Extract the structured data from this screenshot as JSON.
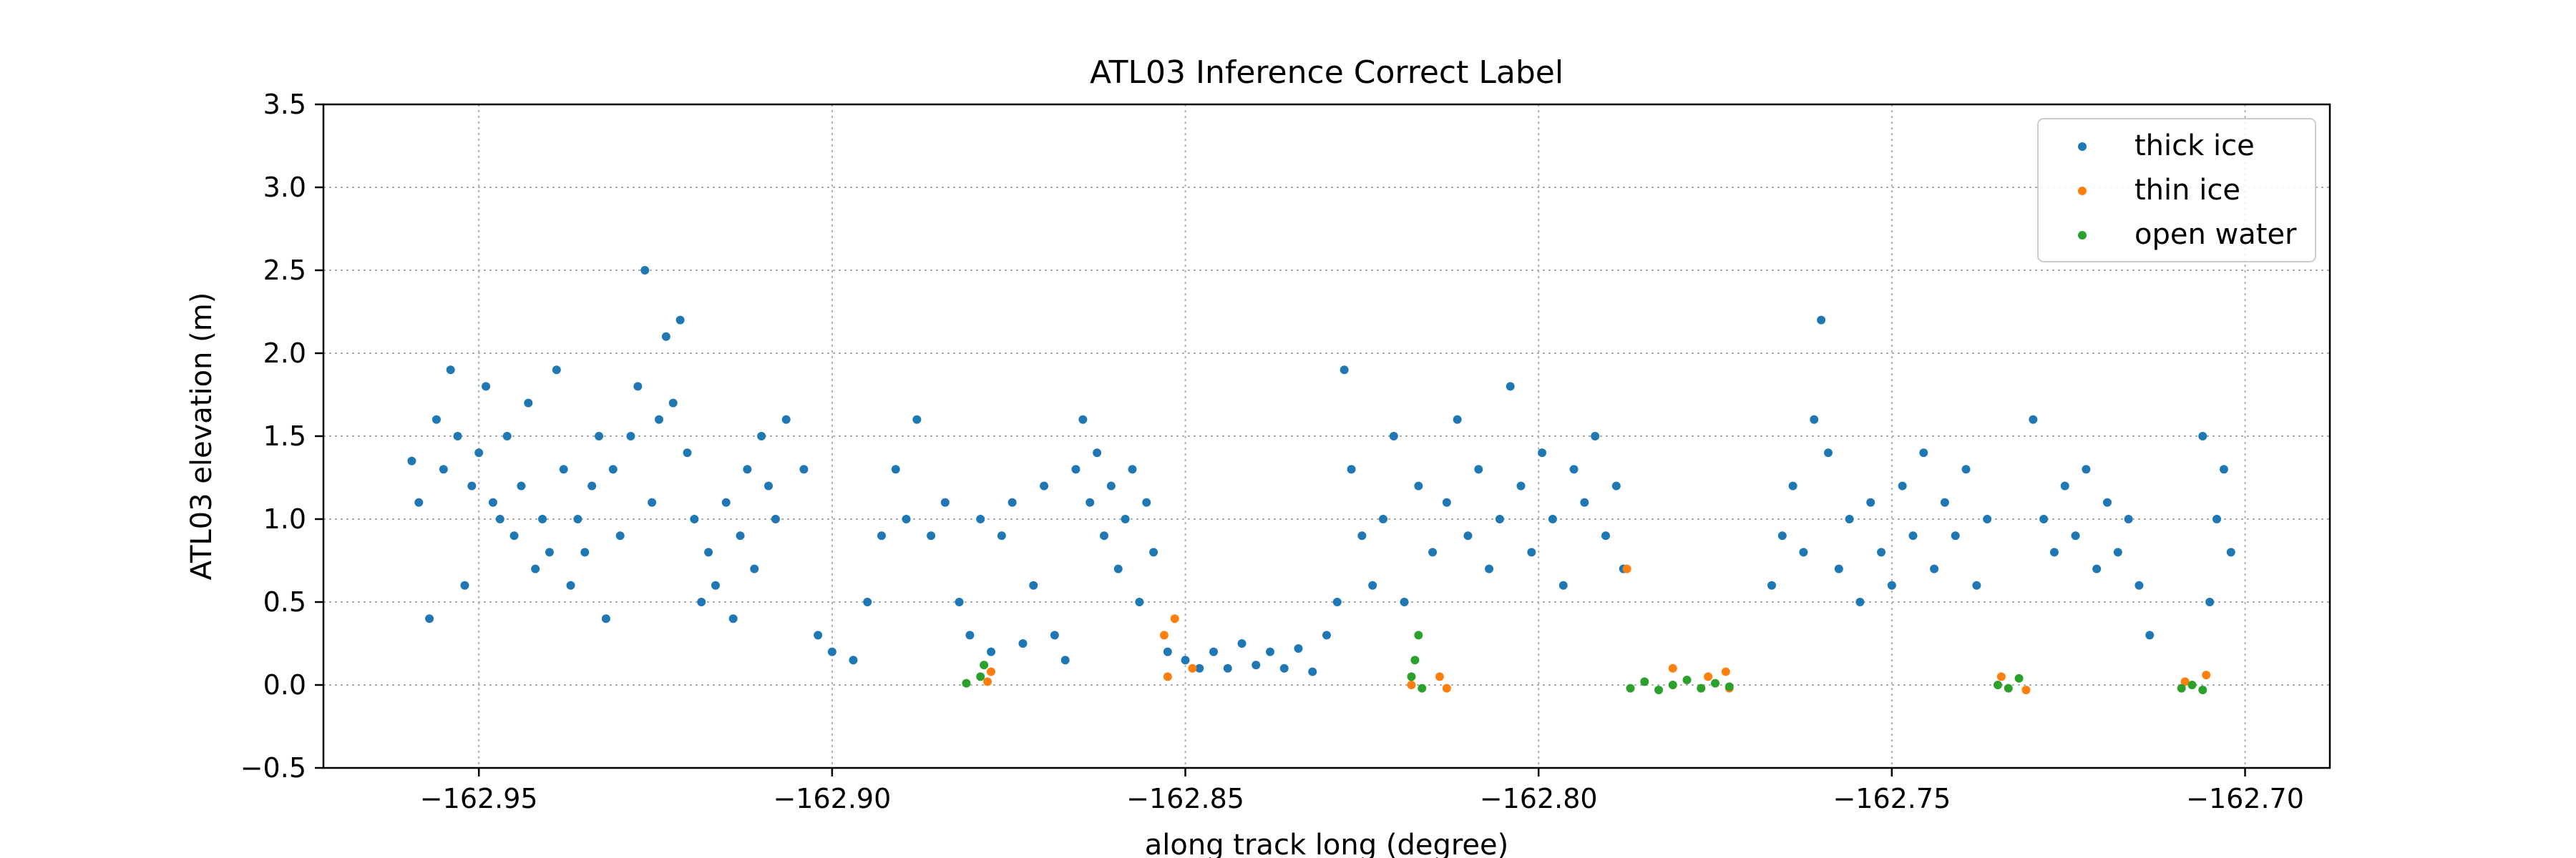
{
  "chart_data": {
    "type": "scatter",
    "title": "ATL03 Inference Correct Label",
    "xlabel": "along track long (degree)",
    "ylabel": "ATL03 elevation (m)",
    "xlim": [
      -162.972,
      -162.688
    ],
    "ylim": [
      -0.5,
      3.5
    ],
    "xticks": [
      -162.95,
      -162.9,
      -162.85,
      -162.8,
      -162.75,
      -162.7
    ],
    "xtick_labels": [
      "−162.95",
      "−162.90",
      "−162.85",
      "−162.80",
      "−162.75",
      "−162.70"
    ],
    "yticks": [
      -0.5,
      0.0,
      0.5,
      1.0,
      1.5,
      2.0,
      2.5,
      3.0,
      3.5
    ],
    "ytick_labels": [
      "−0.5",
      "0.0",
      "0.5",
      "1.0",
      "1.5",
      "2.0",
      "2.5",
      "3.0",
      "3.5"
    ],
    "grid": true,
    "legend_position": "top-right",
    "series": [
      {
        "name": "thick ice",
        "color": "#1f77b4",
        "points": [
          [
            -162.9595,
            1.35
          ],
          [
            -162.9585,
            1.1
          ],
          [
            -162.957,
            0.4
          ],
          [
            -162.956,
            1.6
          ],
          [
            -162.955,
            1.3
          ],
          [
            -162.954,
            1.9
          ],
          [
            -162.953,
            1.5
          ],
          [
            -162.952,
            0.6
          ],
          [
            -162.951,
            1.2
          ],
          [
            -162.95,
            1.4
          ],
          [
            -162.949,
            1.8
          ],
          [
            -162.948,
            1.1
          ],
          [
            -162.947,
            1.0
          ],
          [
            -162.946,
            1.5
          ],
          [
            -162.945,
            0.9
          ],
          [
            -162.944,
            1.2
          ],
          [
            -162.943,
            1.7
          ],
          [
            -162.942,
            0.7
          ],
          [
            -162.941,
            1.0
          ],
          [
            -162.94,
            0.8
          ],
          [
            -162.939,
            1.9
          ],
          [
            -162.938,
            1.3
          ],
          [
            -162.937,
            0.6
          ],
          [
            -162.936,
            1.0
          ],
          [
            -162.935,
            0.8
          ],
          [
            -162.934,
            1.2
          ],
          [
            -162.933,
            1.5
          ],
          [
            -162.932,
            0.4
          ],
          [
            -162.931,
            1.3
          ],
          [
            -162.93,
            0.9
          ],
          [
            -162.9285,
            1.5
          ],
          [
            -162.9275,
            1.8
          ],
          [
            -162.9265,
            2.5
          ],
          [
            -162.9255,
            1.1
          ],
          [
            -162.9245,
            1.6
          ],
          [
            -162.9235,
            2.1
          ],
          [
            -162.9225,
            1.7
          ],
          [
            -162.9215,
            2.2
          ],
          [
            -162.9205,
            1.4
          ],
          [
            -162.9195,
            1.0
          ],
          [
            -162.9185,
            0.5
          ],
          [
            -162.9175,
            0.8
          ],
          [
            -162.9165,
            0.6
          ],
          [
            -162.915,
            1.1
          ],
          [
            -162.914,
            0.4
          ],
          [
            -162.913,
            0.9
          ],
          [
            -162.912,
            1.3
          ],
          [
            -162.911,
            0.7
          ],
          [
            -162.91,
            1.5
          ],
          [
            -162.909,
            1.2
          ],
          [
            -162.908,
            1.0
          ],
          [
            -162.9065,
            1.6
          ],
          [
            -162.904,
            1.3
          ],
          [
            -162.902,
            0.3
          ],
          [
            -162.9,
            0.2
          ],
          [
            -162.897,
            0.15
          ],
          [
            -162.895,
            0.5
          ],
          [
            -162.893,
            0.9
          ],
          [
            -162.891,
            1.3
          ],
          [
            -162.8895,
            1.0
          ],
          [
            -162.888,
            1.6
          ],
          [
            -162.886,
            0.9
          ],
          [
            -162.884,
            1.1
          ],
          [
            -162.882,
            0.5
          ],
          [
            -162.8805,
            0.3
          ],
          [
            -162.879,
            1.0
          ],
          [
            -162.8775,
            0.2
          ],
          [
            -162.876,
            0.9
          ],
          [
            -162.8745,
            1.1
          ],
          [
            -162.873,
            0.25
          ],
          [
            -162.8715,
            0.6
          ],
          [
            -162.87,
            1.2
          ],
          [
            -162.8685,
            0.3
          ],
          [
            -162.867,
            0.15
          ],
          [
            -162.8655,
            1.3
          ],
          [
            -162.8645,
            1.6
          ],
          [
            -162.8635,
            1.1
          ],
          [
            -162.8625,
            1.4
          ],
          [
            -162.8615,
            0.9
          ],
          [
            -162.8605,
            1.2
          ],
          [
            -162.8595,
            0.7
          ],
          [
            -162.8585,
            1.0
          ],
          [
            -162.8575,
            1.3
          ],
          [
            -162.8565,
            0.5
          ],
          [
            -162.8555,
            1.1
          ],
          [
            -162.8545,
            0.8
          ],
          [
            -162.8525,
            0.2
          ],
          [
            -162.85,
            0.15
          ],
          [
            -162.848,
            0.1
          ],
          [
            -162.846,
            0.2
          ],
          [
            -162.844,
            0.1
          ],
          [
            -162.842,
            0.25
          ],
          [
            -162.84,
            0.12
          ],
          [
            -162.838,
            0.2
          ],
          [
            -162.836,
            0.1
          ],
          [
            -162.834,
            0.22
          ],
          [
            -162.832,
            0.08
          ],
          [
            -162.83,
            0.3
          ],
          [
            -162.8285,
            0.5
          ],
          [
            -162.8275,
            1.9
          ],
          [
            -162.8265,
            1.3
          ],
          [
            -162.825,
            0.9
          ],
          [
            -162.8235,
            0.6
          ],
          [
            -162.822,
            1.0
          ],
          [
            -162.8205,
            1.5
          ],
          [
            -162.819,
            0.5
          ],
          [
            -162.817,
            1.2
          ],
          [
            -162.815,
            0.8
          ],
          [
            -162.813,
            1.1
          ],
          [
            -162.8115,
            1.6
          ],
          [
            -162.81,
            0.9
          ],
          [
            -162.8085,
            1.3
          ],
          [
            -162.807,
            0.7
          ],
          [
            -162.8055,
            1.0
          ],
          [
            -162.804,
            1.8
          ],
          [
            -162.8025,
            1.2
          ],
          [
            -162.801,
            0.8
          ],
          [
            -162.7995,
            1.4
          ],
          [
            -162.798,
            1.0
          ],
          [
            -162.7965,
            0.6
          ],
          [
            -162.795,
            1.3
          ],
          [
            -162.7935,
            1.1
          ],
          [
            -162.792,
            1.5
          ],
          [
            -162.7905,
            0.9
          ],
          [
            -162.789,
            1.2
          ],
          [
            -162.788,
            0.7
          ],
          [
            -162.767,
            0.6
          ],
          [
            -162.7655,
            0.9
          ],
          [
            -162.764,
            1.2
          ],
          [
            -162.7625,
            0.8
          ],
          [
            -162.761,
            1.6
          ],
          [
            -162.76,
            2.2
          ],
          [
            -162.759,
            1.4
          ],
          [
            -162.7575,
            0.7
          ],
          [
            -162.756,
            1.0
          ],
          [
            -162.7545,
            0.5
          ],
          [
            -162.753,
            1.1
          ],
          [
            -162.7515,
            0.8
          ],
          [
            -162.75,
            0.6
          ],
          [
            -162.7485,
            1.2
          ],
          [
            -162.747,
            0.9
          ],
          [
            -162.7455,
            1.4
          ],
          [
            -162.744,
            0.7
          ],
          [
            -162.7425,
            1.1
          ],
          [
            -162.741,
            0.9
          ],
          [
            -162.7395,
            1.3
          ],
          [
            -162.738,
            0.6
          ],
          [
            -162.7365,
            1.0
          ],
          [
            -162.73,
            1.6
          ],
          [
            -162.7285,
            1.0
          ],
          [
            -162.727,
            0.8
          ],
          [
            -162.7255,
            1.2
          ],
          [
            -162.724,
            0.9
          ],
          [
            -162.7225,
            1.3
          ],
          [
            -162.721,
            0.7
          ],
          [
            -162.7195,
            1.1
          ],
          [
            -162.718,
            0.8
          ],
          [
            -162.7165,
            1.0
          ],
          [
            -162.715,
            0.6
          ],
          [
            -162.7135,
            0.3
          ],
          [
            -162.706,
            1.5
          ],
          [
            -162.705,
            0.5
          ],
          [
            -162.704,
            1.0
          ],
          [
            -162.703,
            1.3
          ],
          [
            -162.702,
            0.8
          ]
        ]
      },
      {
        "name": "thin ice",
        "color": "#ff7f0e",
        "points": [
          [
            -162.878,
            0.02
          ],
          [
            -162.8775,
            0.08
          ],
          [
            -162.853,
            0.3
          ],
          [
            -162.8525,
            0.05
          ],
          [
            -162.8515,
            0.4
          ],
          [
            -162.849,
            0.1
          ],
          [
            -162.818,
            0.0
          ],
          [
            -162.814,
            0.05
          ],
          [
            -162.813,
            -0.02
          ],
          [
            -162.7875,
            0.7
          ],
          [
            -162.781,
            0.1
          ],
          [
            -162.776,
            0.05
          ],
          [
            -162.7735,
            0.08
          ],
          [
            -162.773,
            -0.02
          ],
          [
            -162.7345,
            0.05
          ],
          [
            -162.731,
            -0.03
          ],
          [
            -162.7085,
            0.02
          ],
          [
            -162.7055,
            0.06
          ]
        ]
      },
      {
        "name": "open water",
        "color": "#2ca02c",
        "points": [
          [
            -162.881,
            0.01
          ],
          [
            -162.879,
            0.05
          ],
          [
            -162.8785,
            0.12
          ],
          [
            -162.818,
            0.05
          ],
          [
            -162.8175,
            0.15
          ],
          [
            -162.817,
            0.3
          ],
          [
            -162.8165,
            -0.02
          ],
          [
            -162.787,
            -0.02
          ],
          [
            -162.785,
            0.02
          ],
          [
            -162.783,
            -0.03
          ],
          [
            -162.781,
            0.0
          ],
          [
            -162.779,
            0.03
          ],
          [
            -162.777,
            -0.02
          ],
          [
            -162.775,
            0.01
          ],
          [
            -162.773,
            -0.01
          ],
          [
            -162.735,
            0.0
          ],
          [
            -162.7335,
            -0.02
          ],
          [
            -162.732,
            0.04
          ],
          [
            -162.709,
            -0.02
          ],
          [
            -162.7075,
            0.0
          ],
          [
            -162.706,
            -0.03
          ]
        ]
      }
    ]
  }
}
